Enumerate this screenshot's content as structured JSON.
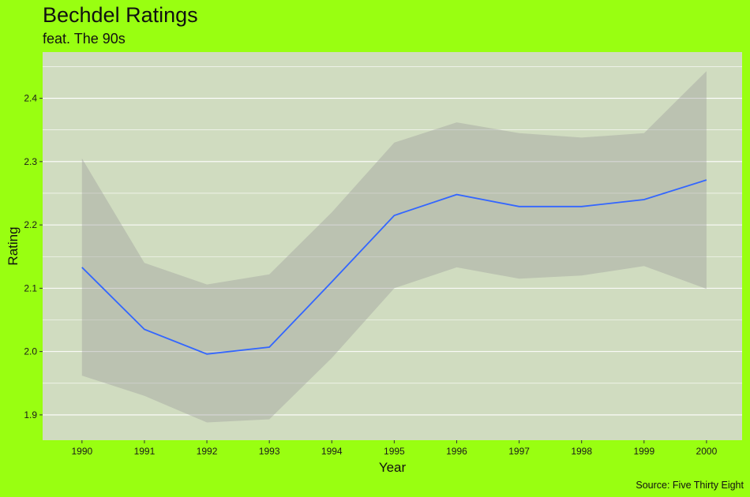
{
  "chart_data": {
    "type": "line",
    "title": "Bechdel Ratings",
    "subtitle": "feat. The 90s",
    "caption": "Source: Five Thirty Eight",
    "xlabel": "Year",
    "ylabel": "Rating",
    "x": [
      1990,
      1991,
      1992,
      1993,
      1994,
      1995,
      1996,
      1997,
      1998,
      1999,
      2000
    ],
    "x_tick_labels": [
      "1990",
      "1991",
      "1992",
      "1993",
      "1994",
      "1995",
      "1996",
      "1997",
      "1998",
      "1999",
      "2000"
    ],
    "series": [
      {
        "values": [
          2.133,
          2.035,
          1.996,
          2.007,
          2.11,
          2.215,
          2.248,
          2.229,
          2.229,
          2.24,
          2.271
        ],
        "ci_upper": [
          2.305,
          2.14,
          2.106,
          2.122,
          2.22,
          2.33,
          2.362,
          2.345,
          2.338,
          2.345,
          2.443
        ],
        "ci_lower": [
          1.962,
          1.93,
          1.888,
          1.893,
          1.99,
          2.1,
          2.133,
          2.115,
          2.12,
          2.135,
          2.099
        ]
      }
    ],
    "y_ticks": [
      1.9,
      2.0,
      2.1,
      2.2,
      2.3,
      2.4
    ],
    "y_tick_labels": [
      "1.9",
      "2.0",
      "2.1",
      "2.2",
      "2.3",
      "2.4"
    ],
    "xlim": [
      1989.37,
      2000.57
    ],
    "ylim": [
      1.86,
      2.473
    ],
    "grid": "horizontal major and minor",
    "legend": "none",
    "colors": {
      "background": "#99ff11",
      "panel": "#d0dcc0",
      "gridline": "#ffffff",
      "ribbon": "#9a9a9a",
      "line": "#3366ff",
      "text": "#111111"
    }
  }
}
